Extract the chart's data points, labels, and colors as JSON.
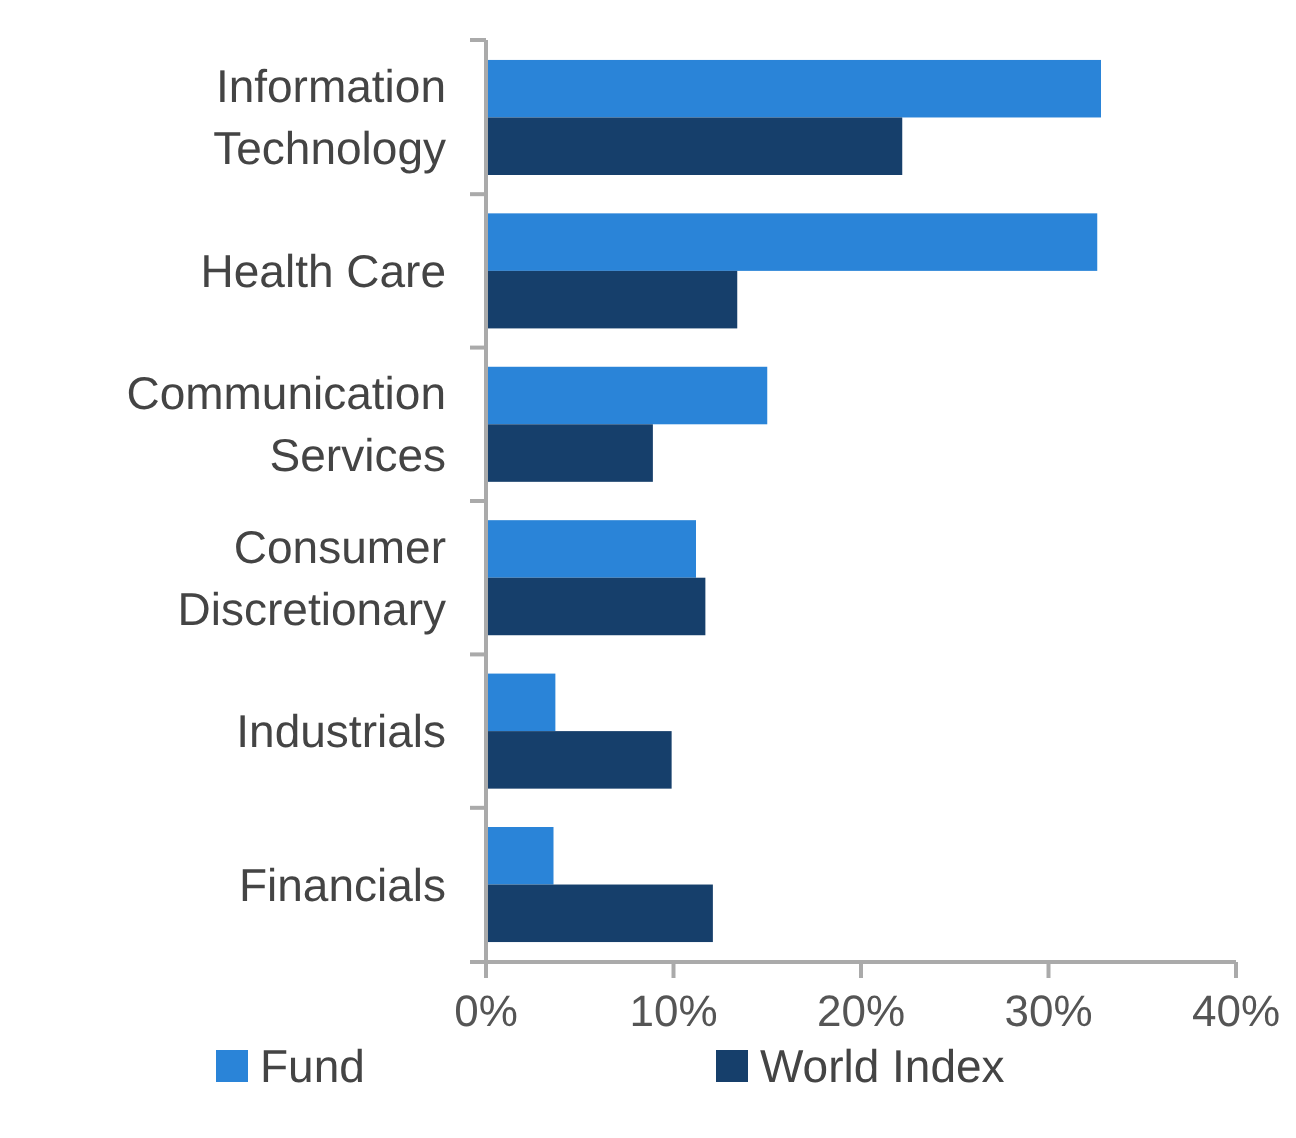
{
  "chart_data": {
    "type": "bar",
    "orientation": "horizontal",
    "categories": [
      "Information Technology",
      "Health Care",
      "Communication Services",
      "Consumer Discretionary",
      "Industrials",
      "Financials"
    ],
    "series": [
      {
        "name": "Fund",
        "color": "#2a84d8",
        "values": [
          32.8,
          32.6,
          15.0,
          11.2,
          3.7,
          3.6
        ]
      },
      {
        "name": "World Index",
        "color": "#163f6b",
        "values": [
          22.2,
          13.4,
          8.9,
          11.7,
          9.9,
          12.1
        ]
      }
    ],
    "xlim": [
      0,
      40
    ],
    "xticks": [
      {
        "value": 0,
        "label": "0%"
      },
      {
        "value": 10,
        "label": "10%"
      },
      {
        "value": 20,
        "label": "20%"
      },
      {
        "value": 30,
        "label": "30%"
      },
      {
        "value": 40,
        "label": "40%"
      }
    ],
    "grid": false,
    "legend": "bottom"
  }
}
